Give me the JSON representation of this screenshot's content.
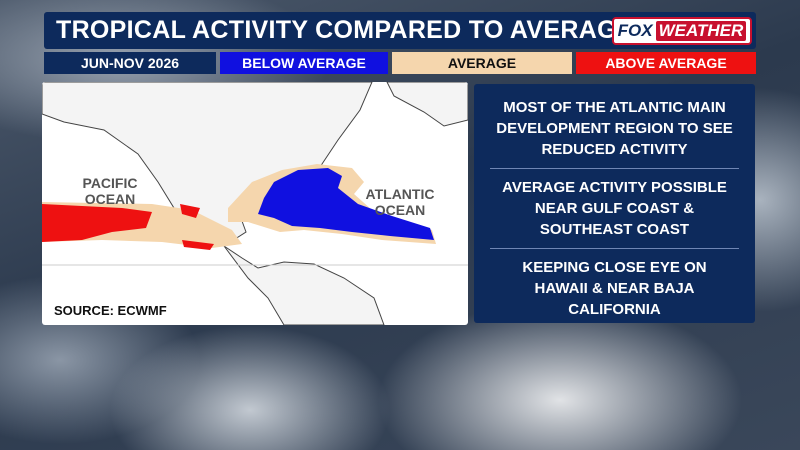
{
  "header": {
    "title": "TROPICAL ACTIVITY COMPARED TO AVERAGE",
    "logo": [
      "FOX",
      "WEATHER"
    ]
  },
  "legend": {
    "period": "JUN-NOV 2026",
    "items": [
      "BELOW AVERAGE",
      "AVERAGE",
      "ABOVE AVERAGE"
    ]
  },
  "map": {
    "labels": [
      "PACIFIC OCEAN",
      "ATLANTIC OCEAN"
    ],
    "source": "SOURCE: ECWMF"
  },
  "notes": [
    "MOST OF THE ATLANTIC MAIN DEVELOPMENT REGION TO SEE REDUCED ACTIVITY",
    "AVERAGE ACTIVITY POSSIBLE NEAR GULF COAST & SOUTHEAST COAST",
    "KEEPING CLOSE EYE ON HAWAII & NEAR BAJA CALIFORNIA"
  ]
}
